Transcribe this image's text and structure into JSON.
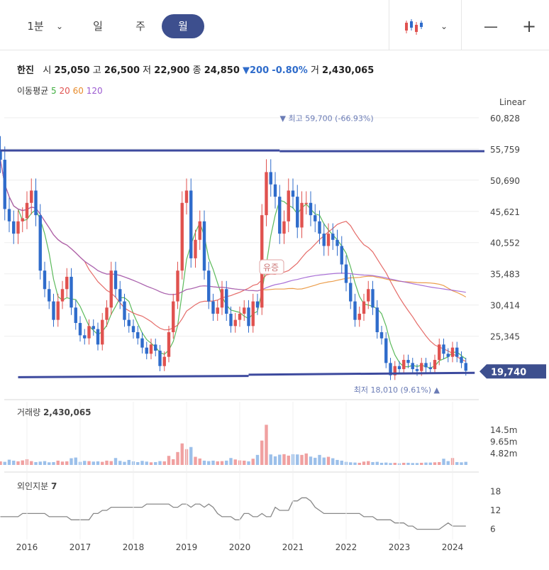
{
  "toolbar": {
    "period_tabs": [
      "1분",
      "일",
      "주",
      "월"
    ],
    "active_tab": "월",
    "minus": "—",
    "plus": "+"
  },
  "quote": {
    "name": "한진",
    "open_label": "시",
    "open": "25,050",
    "high_label": "고",
    "high": "26,500",
    "low_label": "저",
    "low": "22,900",
    "close_label": "종",
    "close": "24,850",
    "change_arrow": "▼",
    "change": "200",
    "change_pct": "-0.80%",
    "volume_label": "거",
    "volume": "2,430,065"
  },
  "ma": {
    "label": "이동평균",
    "periods": [
      {
        "label": "5",
        "color": "#3fae3f"
      },
      {
        "label": "20",
        "color": "#e0524f"
      },
      {
        "label": "60",
        "color": "#e88c2c"
      },
      {
        "label": "120",
        "color": "#9b59d0"
      }
    ]
  },
  "scale_label": "Linear",
  "chart_data": [
    {
      "type": "candlestick",
      "title": "",
      "period": "monthly",
      "x_ticks": [
        "2016",
        "2017",
        "2018",
        "2019",
        "2020",
        "2021",
        "2022",
        "2023",
        "2024"
      ],
      "y_ticks": [
        60828,
        55759,
        50690,
        45621,
        40552,
        35483,
        30414,
        25345
      ],
      "ylim": [
        17700,
        61500
      ],
      "current_price": "19,740",
      "current_price_value": 19740,
      "high_annotation": {
        "label": "최고 59,700 (-66.93%)",
        "value": 59700
      },
      "low_annotation": {
        "label": "최저 18,010 (9.61%)",
        "value": 18010
      },
      "event_label": "유증",
      "trendlines": [
        {
          "from": [
            "2015-07",
            55500
          ],
          "to": [
            "2020-10",
            55500
          ]
        },
        {
          "from": [
            "2015-11",
            18700
          ],
          "to": [
            "2020-03",
            18900
          ]
        },
        {
          "from": [
            "2020-03",
            19100
          ],
          "to": [
            "2024-06",
            19400
          ]
        }
      ],
      "closes": [
        54000,
        46000,
        44000,
        42000,
        44000,
        44500,
        47000,
        49000,
        45000,
        36000,
        33000,
        31000,
        28000,
        31000,
        33000,
        35000,
        30000,
        27500,
        25500,
        25000,
        27000,
        26500,
        24000,
        28000,
        30000,
        36000,
        33000,
        31000,
        28000,
        27000,
        26000,
        25000,
        23500,
        22500,
        24000,
        23000,
        20500,
        22000,
        26000,
        31000,
        36000,
        47000,
        49000,
        38000,
        41000,
        44000,
        36000,
        31000,
        29000,
        30000,
        33000,
        29000,
        27000,
        28000,
        29000,
        30000,
        27000,
        31000,
        30000,
        45000,
        52000,
        50000,
        48000,
        42000,
        44000,
        49000,
        48000,
        43000,
        47000,
        47000,
        45000,
        44000,
        42000,
        40000,
        42000,
        41000,
        40000,
        37000,
        34000,
        31000,
        28000,
        29000,
        31000,
        33000,
        30000,
        26000,
        25000,
        21000,
        19000,
        20500,
        20000,
        21500,
        21000,
        20000,
        19700,
        21000,
        20300,
        20000,
        21500,
        24000,
        22500,
        22000,
        23500,
        22000,
        21000,
        19740
      ],
      "volume": {
        "label": "거래량",
        "value": "2,430,065",
        "y_ticks": [
          "14.5m",
          "9.65m",
          "4.82m"
        ],
        "values": [
          1.5,
          1.3,
          2.2,
          1.8,
          1.5,
          1.9,
          2.4,
          1.6,
          1.2,
          1.4,
          1.6,
          1.1,
          1.2,
          1.8,
          1.4,
          1.5,
          2.8,
          3.1,
          1.3,
          1.7,
          1.6,
          1.4,
          1.5,
          1.3,
          1.8,
          1.6,
          2.9,
          1.7,
          1.3,
          2.1,
          1.5,
          1.2,
          1.7,
          1.4,
          1.1,
          1.2,
          1.6,
          1.5,
          3.8,
          2.4,
          5.4,
          9.0,
          6.6,
          7.5,
          3.4,
          2.7,
          1.8,
          1.6,
          1.8,
          1.5,
          1.6,
          1.8,
          2.9,
          2.3,
          1.9,
          1.8,
          1.5,
          2.6,
          4.2,
          10.2,
          16.8,
          4.4,
          3.6,
          4.3,
          4.5,
          3.9,
          4.5,
          4.4,
          4.2,
          4.8,
          3.5,
          3.0,
          4.2,
          3.1,
          3.4,
          2.8,
          2.1,
          1.8,
          1.3,
          1.1,
          1.0,
          0.9,
          1.4,
          1.6,
          1.2,
          1.3,
          0.9,
          1.0,
          0.8,
          0.9,
          0.7,
          0.9,
          0.9,
          0.8,
          0.8,
          0.9,
          1.0,
          1.0,
          1.1,
          1.2,
          2.6,
          1.6,
          2.9,
          1.2,
          1.1,
          1.3
        ],
        "max_scale": 19.3
      },
      "foreign_share": {
        "label": "외인지분",
        "value": "7",
        "y_ticks": [
          "18",
          "12",
          "6"
        ],
        "values": [
          10,
          10,
          10,
          10,
          10,
          11,
          11,
          11,
          11,
          11,
          11,
          10,
          10,
          10,
          10,
          10,
          9,
          9,
          9,
          9,
          9,
          11,
          11,
          12,
          12,
          13,
          13,
          13,
          13,
          13,
          13,
          13,
          13,
          14,
          14,
          14,
          14,
          14,
          14,
          13,
          13,
          14,
          14,
          13,
          14,
          14,
          13,
          14,
          13,
          11,
          10,
          10,
          10,
          9,
          9,
          11,
          11,
          10,
          10,
          11,
          10,
          10,
          13,
          12,
          12,
          12,
          15,
          15,
          16,
          16,
          15,
          13,
          12,
          11,
          11,
          11,
          11,
          11,
          11,
          11,
          11,
          11,
          10,
          10,
          10,
          9,
          9,
          9,
          9,
          8,
          8,
          8,
          7,
          7,
          6,
          6,
          6,
          6,
          6,
          6,
          7,
          8,
          7,
          7,
          7,
          7
        ],
        "ylim": [
          5,
          19
        ]
      }
    }
  ]
}
